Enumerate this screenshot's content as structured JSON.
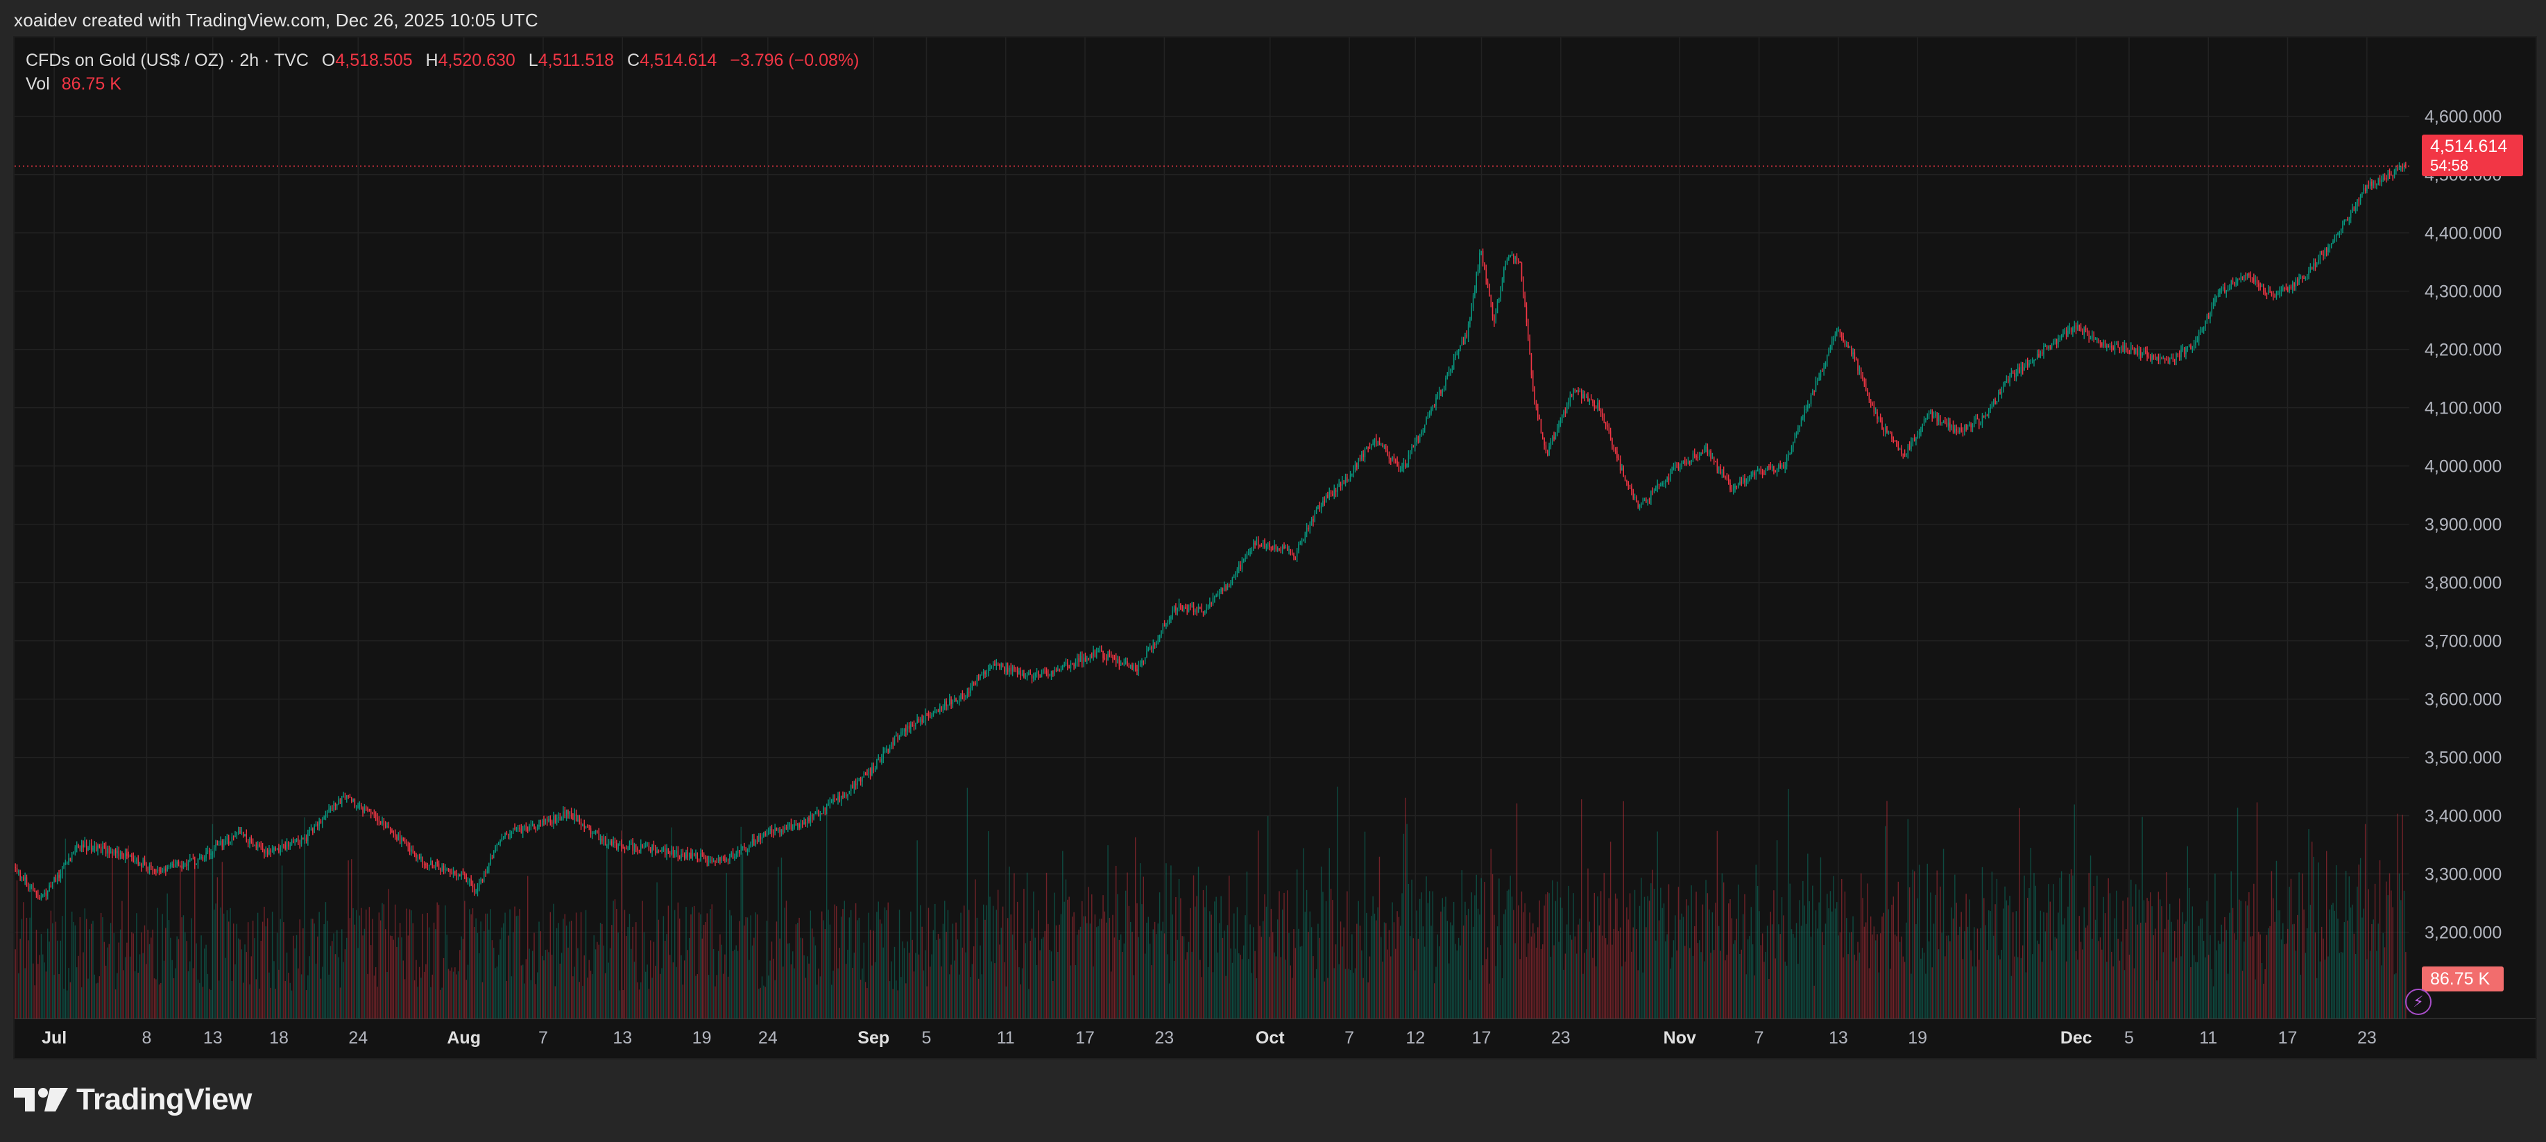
{
  "attribution": "xoaidev created with TradingView.com, Dec 26, 2025 10:05 UTC",
  "legend": {
    "symbol": "CFDs on Gold (US$ / OZ) · 2h · TVC",
    "o_label": "O",
    "o_value": "4,518.505",
    "h_label": "H",
    "h_value": "4,520.630",
    "l_label": "L",
    "l_value": "4,511.518",
    "c_label": "C",
    "c_value": "4,514.614",
    "change": "−3.796 (−0.08%)",
    "vol_label": "Vol",
    "vol_value": "86.75 K"
  },
  "price_badge": {
    "price": "4,514.614",
    "countdown": "54:58"
  },
  "volume_badge": "86.75 K",
  "brand": "TradingView",
  "colors": {
    "up": "#089981",
    "down": "#f23645",
    "background": "#131313",
    "grid": "#222222",
    "axis_text": "#b2b5be"
  },
  "chart_data": {
    "type": "candlestick",
    "symbol": "CFDs on Gold (US$ / OZ)",
    "interval": "2h",
    "ylim": [
      3140,
      4640
    ],
    "y_ticks": [
      "4,600.000",
      "4,500.000",
      "4,400.000",
      "4,300.000",
      "4,200.000",
      "4,100.000",
      "4,000.000",
      "3,900.000",
      "3,800.000",
      "3,700.000",
      "3,600.000",
      "3,500.000",
      "3,400.000",
      "3,300.000",
      "3,200.000"
    ],
    "x_ticks": [
      {
        "label": "Jul",
        "date": "2025-07-01",
        "bold": true
      },
      {
        "label": "8",
        "date": "2025-07-08"
      },
      {
        "label": "13",
        "date": "2025-07-13"
      },
      {
        "label": "18",
        "date": "2025-07-18"
      },
      {
        "label": "24",
        "date": "2025-07-24"
      },
      {
        "label": "Aug",
        "date": "2025-08-01",
        "bold": true
      },
      {
        "label": "7",
        "date": "2025-08-07"
      },
      {
        "label": "13",
        "date": "2025-08-13"
      },
      {
        "label": "19",
        "date": "2025-08-19"
      },
      {
        "label": "24",
        "date": "2025-08-24"
      },
      {
        "label": "Sep",
        "date": "2025-09-01",
        "bold": true
      },
      {
        "label": "5",
        "date": "2025-09-05"
      },
      {
        "label": "11",
        "date": "2025-09-11"
      },
      {
        "label": "17",
        "date": "2025-09-17"
      },
      {
        "label": "23",
        "date": "2025-09-23"
      },
      {
        "label": "Oct",
        "date": "2025-10-01",
        "bold": true
      },
      {
        "label": "7",
        "date": "2025-10-07"
      },
      {
        "label": "12",
        "date": "2025-10-12"
      },
      {
        "label": "17",
        "date": "2025-10-17"
      },
      {
        "label": "23",
        "date": "2025-10-23"
      },
      {
        "label": "Nov",
        "date": "2025-11-01",
        "bold": true
      },
      {
        "label": "7",
        "date": "2025-11-07"
      },
      {
        "label": "13",
        "date": "2025-11-13"
      },
      {
        "label": "19",
        "date": "2025-11-19"
      },
      {
        "label": "Dec",
        "date": "2025-12-01",
        "bold": true
      },
      {
        "label": "5",
        "date": "2025-12-05"
      },
      {
        "label": "11",
        "date": "2025-12-11"
      },
      {
        "label": "17",
        "date": "2025-12-17"
      },
      {
        "label": "23",
        "date": "2025-12-23"
      }
    ],
    "price_path": [
      {
        "date": "2025-06-27",
        "close": 3340
      },
      {
        "date": "2025-06-30",
        "close": 3255
      },
      {
        "date": "2025-07-03",
        "close": 3350
      },
      {
        "date": "2025-07-06",
        "close": 3335
      },
      {
        "date": "2025-07-09",
        "close": 3305
      },
      {
        "date": "2025-07-12",
        "close": 3325
      },
      {
        "date": "2025-07-15",
        "close": 3370
      },
      {
        "date": "2025-07-17",
        "close": 3335
      },
      {
        "date": "2025-07-20",
        "close": 3360
      },
      {
        "date": "2025-07-23",
        "close": 3435
      },
      {
        "date": "2025-07-26",
        "close": 3385
      },
      {
        "date": "2025-07-29",
        "close": 3320
      },
      {
        "date": "2025-08-01",
        "close": 3300
      },
      {
        "date": "2025-08-02",
        "close": 3270
      },
      {
        "date": "2025-08-04",
        "close": 3370
      },
      {
        "date": "2025-08-07",
        "close": 3385
      },
      {
        "date": "2025-08-09",
        "close": 3405
      },
      {
        "date": "2025-08-12",
        "close": 3350
      },
      {
        "date": "2025-08-15",
        "close": 3345
      },
      {
        "date": "2025-08-18",
        "close": 3330
      },
      {
        "date": "2025-08-21",
        "close": 3325
      },
      {
        "date": "2025-08-24",
        "close": 3370
      },
      {
        "date": "2025-08-27",
        "close": 3390
      },
      {
        "date": "2025-08-30",
        "close": 3440
      },
      {
        "date": "2025-09-01",
        "close": 3480
      },
      {
        "date": "2025-09-03",
        "close": 3540
      },
      {
        "date": "2025-09-05",
        "close": 3570
      },
      {
        "date": "2025-09-08",
        "close": 3610
      },
      {
        "date": "2025-09-10",
        "close": 3660
      },
      {
        "date": "2025-09-13",
        "close": 3640
      },
      {
        "date": "2025-09-15",
        "close": 3650
      },
      {
        "date": "2025-09-18",
        "close": 3680
      },
      {
        "date": "2025-09-21",
        "close": 3650
      },
      {
        "date": "2025-09-24",
        "close": 3760
      },
      {
        "date": "2025-09-26",
        "close": 3750
      },
      {
        "date": "2025-09-28",
        "close": 3800
      },
      {
        "date": "2025-09-30",
        "close": 3870
      },
      {
        "date": "2025-10-03",
        "close": 3850
      },
      {
        "date": "2025-10-05",
        "close": 3940
      },
      {
        "date": "2025-10-07",
        "close": 3980
      },
      {
        "date": "2025-10-09",
        "close": 4050
      },
      {
        "date": "2025-10-11",
        "close": 3990
      },
      {
        "date": "2025-10-14",
        "close": 4130
      },
      {
        "date": "2025-10-16",
        "close": 4230
      },
      {
        "date": "2025-10-17",
        "close": 4370
      },
      {
        "date": "2025-10-18",
        "close": 4250
      },
      {
        "date": "2025-10-19",
        "close": 4360
      },
      {
        "date": "2025-10-20",
        "close": 4350
      },
      {
        "date": "2025-10-21",
        "close": 4120
      },
      {
        "date": "2025-10-22",
        "close": 4020
      },
      {
        "date": "2025-10-24",
        "close": 4130
      },
      {
        "date": "2025-10-26",
        "close": 4100
      },
      {
        "date": "2025-10-28",
        "close": 3970
      },
      {
        "date": "2025-10-29",
        "close": 3930
      },
      {
        "date": "2025-11-01",
        "close": 4000
      },
      {
        "date": "2025-11-03",
        "close": 4030
      },
      {
        "date": "2025-11-05",
        "close": 3960
      },
      {
        "date": "2025-11-07",
        "close": 3990
      },
      {
        "date": "2025-11-09",
        "close": 4000
      },
      {
        "date": "2025-11-11",
        "close": 4120
      },
      {
        "date": "2025-11-13",
        "close": 4230
      },
      {
        "date": "2025-11-14",
        "close": 4200
      },
      {
        "date": "2025-11-16",
        "close": 4080
      },
      {
        "date": "2025-11-18",
        "close": 4020
      },
      {
        "date": "2025-11-20",
        "close": 4090
      },
      {
        "date": "2025-11-22",
        "close": 4060
      },
      {
        "date": "2025-11-24",
        "close": 4080
      },
      {
        "date": "2025-11-26",
        "close": 4150
      },
      {
        "date": "2025-11-28",
        "close": 4190
      },
      {
        "date": "2025-12-01",
        "close": 4240
      },
      {
        "date": "2025-12-03",
        "close": 4210
      },
      {
        "date": "2025-12-05",
        "close": 4200
      },
      {
        "date": "2025-12-08",
        "close": 4180
      },
      {
        "date": "2025-12-10",
        "close": 4210
      },
      {
        "date": "2025-12-12",
        "close": 4300
      },
      {
        "date": "2025-12-14",
        "close": 4330
      },
      {
        "date": "2025-12-16",
        "close": 4290
      },
      {
        "date": "2025-12-18",
        "close": 4320
      },
      {
        "date": "2025-12-19",
        "close": 4340
      },
      {
        "date": "2025-12-22",
        "close": 4440
      },
      {
        "date": "2025-12-23",
        "close": 4480
      },
      {
        "date": "2025-12-24",
        "close": 4490
      },
      {
        "date": "2025-12-26",
        "close": 4514.614
      }
    ],
    "last_price": 4514.614,
    "last_volume": "86.75 K"
  }
}
